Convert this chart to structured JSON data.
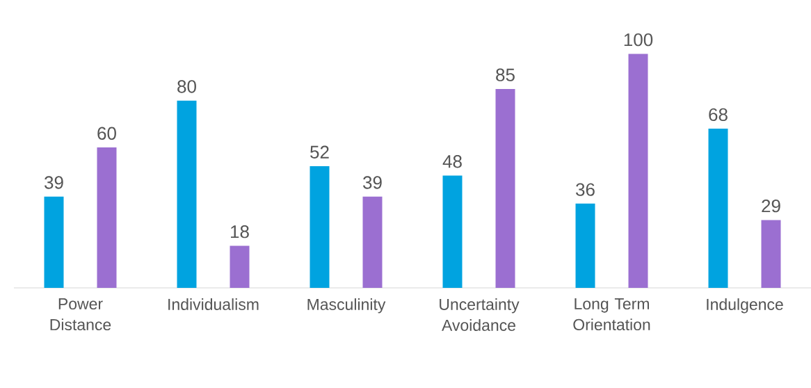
{
  "chart_data": {
    "type": "bar",
    "categories": [
      "Power Distance",
      "Individualism",
      "Masculinity",
      "Uncertainty Avoidance",
      "Long Term Orientation",
      "Indulgence"
    ],
    "series": [
      {
        "color": "#00a3e0",
        "values": [
          39,
          80,
          52,
          48,
          36,
          68
        ]
      },
      {
        "color": "#9b6fd1",
        "values": [
          60,
          18,
          39,
          85,
          100,
          29
        ]
      }
    ],
    "data_labels": true
  }
}
